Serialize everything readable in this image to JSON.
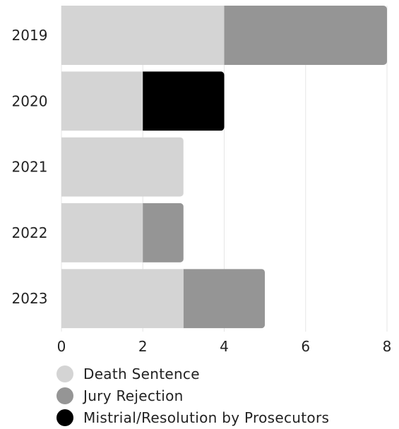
{
  "chart_data": {
    "type": "bar",
    "orientation": "horizontal",
    "stacked": true,
    "categories": [
      "2019",
      "2020",
      "2021",
      "2022",
      "2023"
    ],
    "series": [
      {
        "name": "Death Sentence",
        "values": [
          4,
          2,
          3,
          2,
          3
        ],
        "color": "#d4d4d4"
      },
      {
        "name": "Jury Rejection",
        "values": [
          4,
          0,
          0,
          1,
          2
        ],
        "color": "#959595"
      },
      {
        "name": "Mistrial/Resolution by Prosecutors",
        "values": [
          0,
          2,
          0,
          0,
          0
        ],
        "color": "#000000"
      }
    ],
    "xlim": [
      0,
      8
    ],
    "xticks": [
      0,
      2,
      4,
      6,
      8
    ],
    "grid": "vertical",
    "legend": "bottom-left",
    "title": "",
    "xlabel": "",
    "ylabel": ""
  }
}
